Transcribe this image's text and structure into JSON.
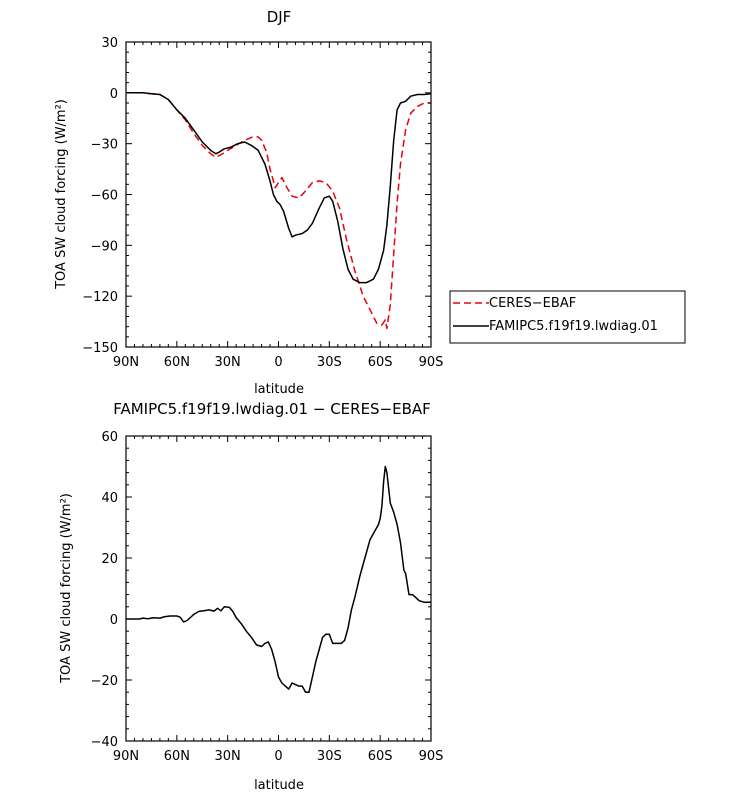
{
  "chart_data": [
    {
      "type": "line",
      "title": "DJF",
      "xlabel": "latitude",
      "ylabel": "TOA SW cloud forcing (W/m²)",
      "xlim": [
        90,
        -90
      ],
      "ylim": [
        -150,
        30
      ],
      "xticks": [
        90,
        60,
        30,
        0,
        -30,
        -60,
        -90
      ],
      "xtick_labels": [
        "90N",
        "60N",
        "30N",
        "0",
        "30S",
        "60S",
        "90S"
      ],
      "yticks": [
        30,
        0,
        -30,
        -60,
        -90,
        -120,
        -150
      ],
      "ytick_labels": [
        "30",
        "0",
        "−30",
        "−60",
        "−90",
        "−120",
        "−150"
      ],
      "legend_position": "right",
      "series": [
        {
          "name": "CERES−EBAF",
          "color": "#e8000b",
          "dash": "dashed",
          "points": [
            [
              90,
              0
            ],
            [
              80,
              0
            ],
            [
              75,
              -0.5
            ],
            [
              70,
              -1
            ],
            [
              65,
              -4
            ],
            [
              60,
              -10
            ],
            [
              55,
              -16
            ],
            [
              50,
              -24
            ],
            [
              45,
              -31
            ],
            [
              40,
              -36
            ],
            [
              37,
              -38
            ],
            [
              33,
              -36
            ],
            [
              30,
              -34
            ],
            [
              25,
              -31
            ],
            [
              20,
              -28
            ],
            [
              15,
              -26
            ],
            [
              12,
              -26
            ],
            [
              10,
              -28
            ],
            [
              7,
              -35
            ],
            [
              5,
              -45
            ],
            [
              3,
              -52
            ],
            [
              2,
              -56
            ],
            [
              0,
              -53
            ],
            [
              -2,
              -50
            ],
            [
              -5,
              -56
            ],
            [
              -8,
              -61
            ],
            [
              -12,
              -62
            ],
            [
              -15,
              -59
            ],
            [
              -20,
              -53
            ],
            [
              -24,
              -52
            ],
            [
              -28,
              -53
            ],
            [
              -32,
              -58
            ],
            [
              -36,
              -68
            ],
            [
              -40,
              -86
            ],
            [
              -45,
              -105
            ],
            [
              -50,
              -120
            ],
            [
              -55,
              -130
            ],
            [
              -58,
              -136
            ],
            [
              -61,
              -137
            ],
            [
              -63,
              -134
            ],
            [
              -64,
              -139
            ],
            [
              -66,
              -125
            ],
            [
              -68,
              -95
            ],
            [
              -70,
              -65
            ],
            [
              -72,
              -42
            ],
            [
              -75,
              -22
            ],
            [
              -78,
              -12
            ],
            [
              -82,
              -8
            ],
            [
              -86,
              -6
            ],
            [
              -90,
              -6
            ]
          ]
        },
        {
          "name": "FAMIPC5.f19f19.lwdiag.01",
          "color": "#000000",
          "dash": "solid",
          "points": [
            [
              90,
              0
            ],
            [
              80,
              0
            ],
            [
              75,
              -0.5
            ],
            [
              70,
              -1
            ],
            [
              65,
              -4
            ],
            [
              60,
              -10
            ],
            [
              55,
              -15
            ],
            [
              50,
              -22
            ],
            [
              45,
              -29
            ],
            [
              40,
              -34
            ],
            [
              37,
              -36
            ],
            [
              35,
              -35
            ],
            [
              32,
              -33
            ],
            [
              28,
              -32
            ],
            [
              24,
              -30
            ],
            [
              20,
              -29
            ],
            [
              16,
              -31
            ],
            [
              12,
              -34
            ],
            [
              8,
              -42
            ],
            [
              5,
              -52
            ],
            [
              3,
              -60
            ],
            [
              1,
              -64
            ],
            [
              -1,
              -66
            ],
            [
              -3,
              -70
            ],
            [
              -6,
              -80
            ],
            [
              -8,
              -85
            ],
            [
              -10,
              -84
            ],
            [
              -14,
              -83
            ],
            [
              -17,
              -81
            ],
            [
              -20,
              -77
            ],
            [
              -24,
              -68
            ],
            [
              -27,
              -62
            ],
            [
              -30,
              -61
            ],
            [
              -32,
              -64
            ],
            [
              -35,
              -76
            ],
            [
              -38,
              -92
            ],
            [
              -41,
              -104
            ],
            [
              -44,
              -110
            ],
            [
              -48,
              -112
            ],
            [
              -52,
              -112
            ],
            [
              -56,
              -110
            ],
            [
              -59,
              -104
            ],
            [
              -62,
              -93
            ],
            [
              -64,
              -78
            ],
            [
              -66,
              -55
            ],
            [
              -68,
              -28
            ],
            [
              -70,
              -10
            ],
            [
              -72,
              -6
            ],
            [
              -75,
              -5
            ],
            [
              -78,
              -2
            ],
            [
              -82,
              -1
            ],
            [
              -86,
              -1
            ],
            [
              -90,
              -0.5
            ]
          ]
        }
      ]
    },
    {
      "type": "line",
      "title": "FAMIPC5.f19f19.lwdiag.01 − CERES−EBAF",
      "xlabel": "latitude",
      "ylabel": "TOA SW cloud forcing (W/m²)",
      "xlim": [
        90,
        -90
      ],
      "ylim": [
        -40,
        60
      ],
      "xticks": [
        90,
        60,
        30,
        0,
        -30,
        -60,
        -90
      ],
      "xtick_labels": [
        "90N",
        "60N",
        "30N",
        "0",
        "30S",
        "60S",
        "90S"
      ],
      "yticks": [
        60,
        40,
        20,
        0,
        -20,
        -40
      ],
      "ytick_labels": [
        "60",
        "40",
        "20",
        "0",
        "−20",
        "−40"
      ],
      "series": [
        {
          "color": "#000000",
          "dash": "solid",
          "points": [
            [
              90,
              0
            ],
            [
              82,
              0
            ],
            [
              80,
              0.3
            ],
            [
              77,
              0.1
            ],
            [
              74,
              0.4
            ],
            [
              70,
              0.3
            ],
            [
              67,
              0.8
            ],
            [
              64,
              1.0
            ],
            [
              60,
              1.0
            ],
            [
              58,
              0.6
            ],
            [
              56,
              -1.0
            ],
            [
              54,
              -0.5
            ],
            [
              50,
              1.5
            ],
            [
              47,
              2.5
            ],
            [
              44,
              2.7
            ],
            [
              41,
              3.0
            ],
            [
              38,
              2.6
            ],
            [
              36,
              3.5
            ],
            [
              34,
              2.7
            ],
            [
              32,
              4.0
            ],
            [
              29,
              3.8
            ],
            [
              27,
              2.5
            ],
            [
              25,
              0.5
            ],
            [
              22,
              -1.5
            ],
            [
              19,
              -4
            ],
            [
              16,
              -6
            ],
            [
              13,
              -8.5
            ],
            [
              10,
              -9
            ],
            [
              8,
              -8
            ],
            [
              6,
              -7.5
            ],
            [
              4,
              -10
            ],
            [
              2,
              -14
            ],
            [
              0,
              -19
            ],
            [
              -2,
              -21
            ],
            [
              -4,
              -22
            ],
            [
              -6,
              -23
            ],
            [
              -8,
              -21
            ],
            [
              -10,
              -21.5
            ],
            [
              -12,
              -22
            ],
            [
              -14,
              -22
            ],
            [
              -16,
              -24
            ],
            [
              -18,
              -24
            ],
            [
              -20,
              -19
            ],
            [
              -22,
              -14
            ],
            [
              -24,
              -10
            ],
            [
              -26,
              -6
            ],
            [
              -28,
              -5
            ],
            [
              -30,
              -5
            ],
            [
              -32,
              -8
            ],
            [
              -35,
              -8
            ],
            [
              -37,
              -8
            ],
            [
              -39,
              -7
            ],
            [
              -41,
              -3
            ],
            [
              -43,
              3
            ],
            [
              -45,
              7
            ],
            [
              -48,
              14
            ],
            [
              -51,
              20
            ],
            [
              -54,
              26
            ],
            [
              -57,
              29
            ],
            [
              -59,
              31
            ],
            [
              -60,
              33
            ],
            [
              -61,
              37
            ],
            [
              -62,
              45
            ],
            [
              -63,
              50
            ],
            [
              -64,
              48
            ],
            [
              -65,
              43
            ],
            [
              -66,
              38
            ],
            [
              -68,
              35
            ],
            [
              -70,
              31
            ],
            [
              -72,
              25
            ],
            [
              -74,
              16
            ],
            [
              -75,
              15
            ],
            [
              -77,
              8
            ],
            [
              -79,
              8
            ],
            [
              -81,
              7
            ],
            [
              -83,
              6
            ],
            [
              -86,
              5.5
            ],
            [
              -90,
              5.5
            ]
          ]
        }
      ]
    }
  ]
}
